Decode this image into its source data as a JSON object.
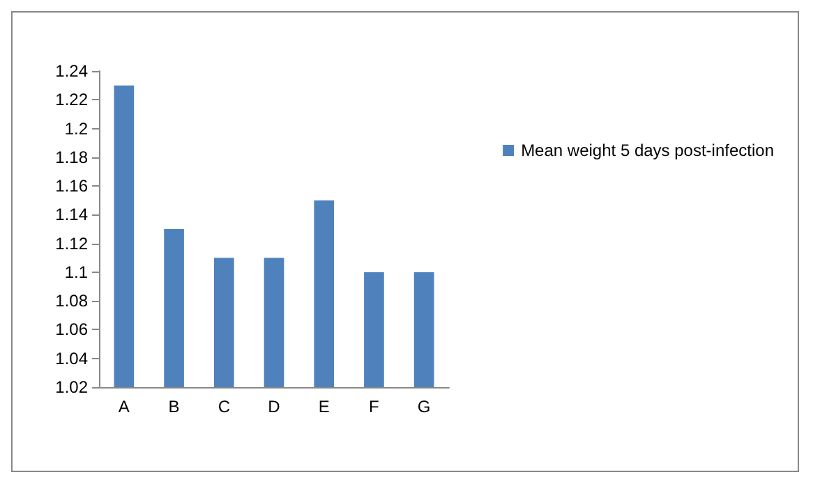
{
  "chart_data": {
    "type": "bar",
    "categories": [
      "A",
      "B",
      "C",
      "D",
      "E",
      "F",
      "G"
    ],
    "series": [
      {
        "name": "Mean weight 5 days post-infection",
        "color": "#4f81bd",
        "values": [
          1.23,
          1.13,
          1.11,
          1.11,
          1.15,
          1.1,
          1.1
        ]
      }
    ],
    "ylim": [
      1.02,
      1.24
    ],
    "yticks": [
      1.02,
      1.04,
      1.06,
      1.08,
      1.1,
      1.12,
      1.14,
      1.16,
      1.18,
      1.2,
      1.22,
      1.24
    ],
    "grid": false,
    "legend": "right"
  }
}
